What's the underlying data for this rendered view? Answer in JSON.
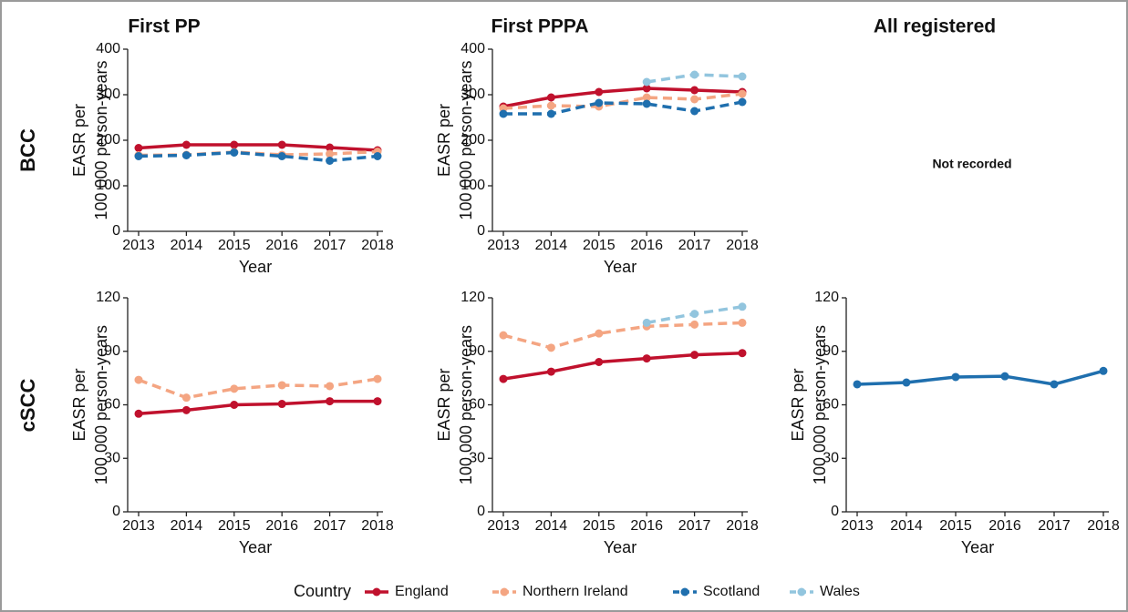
{
  "column_titles": [
    "First PP",
    "First PPPA",
    "All registered"
  ],
  "row_labels": [
    "BCC",
    "cSCC"
  ],
  "note": "Not recorded",
  "legend_title": "Country",
  "chart_data": [
    {
      "type": "line",
      "ylabel": [
        "EASR per",
        "100 000 person-years"
      ],
      "xlabel": "Year",
      "categories": [
        "2013",
        "2014",
        "2015",
        "2016",
        "2017",
        "2018"
      ],
      "ylim": [
        0,
        400
      ],
      "yticks": [
        0,
        100,
        200,
        300,
        400
      ],
      "series": [
        {
          "name": "England",
          "color": "#c0112d",
          "dashed": false,
          "values": [
            183,
            190,
            190,
            190,
            184,
            178
          ]
        },
        {
          "name": "Northern Ireland",
          "color": "#f4a582",
          "dashed": true,
          "values": [
            167,
            168,
            174,
            168,
            170,
            175
          ]
        },
        {
          "name": "Scotland",
          "color": "#1f6fae",
          "dashed": true,
          "values": [
            165,
            167,
            173,
            165,
            155,
            165
          ]
        }
      ]
    },
    {
      "type": "line",
      "ylabel": [
        "EASR per",
        "100 000 person-years"
      ],
      "xlabel": "Year",
      "categories": [
        "2013",
        "2014",
        "2015",
        "2016",
        "2017",
        "2018"
      ],
      "ylim": [
        0,
        400
      ],
      "yticks": [
        0,
        100,
        200,
        300,
        400
      ],
      "series": [
        {
          "name": "England",
          "color": "#c0112d",
          "dashed": false,
          "values": [
            274,
            294,
            306,
            314,
            310,
            306
          ]
        },
        {
          "name": "Northern Ireland",
          "color": "#f4a582",
          "dashed": true,
          "values": [
            270,
            276,
            274,
            294,
            290,
            302
          ]
        },
        {
          "name": "Scotland",
          "color": "#1f6fae",
          "dashed": true,
          "values": [
            258,
            258,
            282,
            280,
            264,
            284
          ]
        },
        {
          "name": "Wales",
          "color": "#92c5de",
          "dashed": true,
          "values": [
            null,
            null,
            null,
            328,
            344,
            340
          ]
        }
      ]
    },
    {
      "type": "line",
      "ylabel": [
        "EASR per",
        "100 000 person-years"
      ],
      "xlabel": "Year",
      "categories": [
        "2013",
        "2014",
        "2015",
        "2016",
        "2017",
        "2018"
      ],
      "ylim": [
        0,
        120
      ],
      "yticks": [
        0,
        30,
        60,
        90,
        120
      ],
      "series": [
        {
          "name": "England",
          "color": "#c0112d",
          "dashed": false,
          "values": [
            55,
            57,
            60,
            60.5,
            62,
            62
          ]
        },
        {
          "name": "Northern Ireland",
          "color": "#f4a582",
          "dashed": true,
          "values": [
            74,
            64,
            69,
            71,
            70.5,
            74.5
          ]
        }
      ]
    },
    {
      "type": "line",
      "ylabel": [
        "EASR per",
        "100 000 person-years"
      ],
      "xlabel": "Year",
      "categories": [
        "2013",
        "2014",
        "2015",
        "2016",
        "2017",
        "2018"
      ],
      "ylim": [
        0,
        120
      ],
      "yticks": [
        0,
        30,
        60,
        90,
        120
      ],
      "series": [
        {
          "name": "England",
          "color": "#c0112d",
          "dashed": false,
          "values": [
            74.5,
            78.6,
            84,
            86,
            88,
            89
          ]
        },
        {
          "name": "Northern Ireland",
          "color": "#f4a582",
          "dashed": true,
          "values": [
            99,
            92,
            100,
            104,
            105,
            106
          ]
        },
        {
          "name": "Wales",
          "color": "#92c5de",
          "dashed": true,
          "values": [
            null,
            null,
            null,
            106,
            111,
            115
          ]
        }
      ]
    },
    {
      "type": "line",
      "ylabel": [
        "EASR per",
        "100 000 person-years"
      ],
      "xlabel": "Year",
      "categories": [
        "2013",
        "2014",
        "2015",
        "2016",
        "2017",
        "2018"
      ],
      "ylim": [
        0,
        120
      ],
      "yticks": [
        0,
        30,
        60,
        90,
        120
      ],
      "series": [
        {
          "name": "Scotland",
          "color": "#1f6fae",
          "dashed": false,
          "values": [
            71.5,
            72.5,
            75.6,
            76,
            71.5,
            79
          ]
        }
      ]
    }
  ]
}
